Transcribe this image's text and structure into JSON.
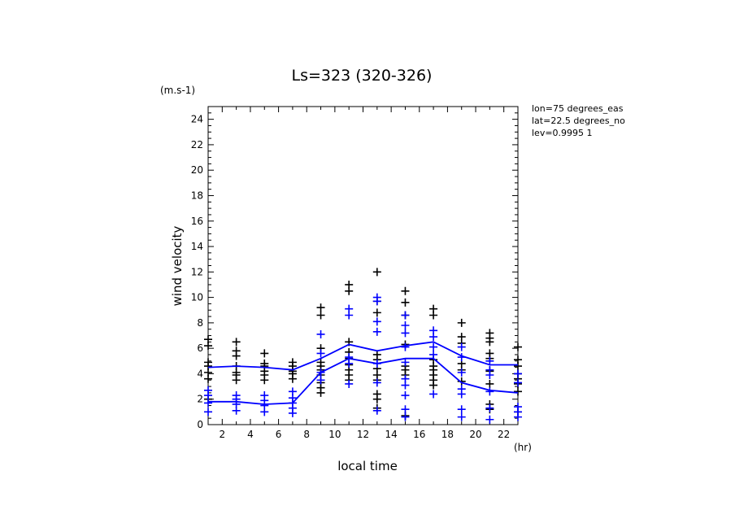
{
  "chart_data": {
    "type": "scatter",
    "title": "Ls=323 (320-326)",
    "xlabel": "local time",
    "ylabel": "wind velocity",
    "x_unit": "(hr)",
    "y_unit": "(m.s-1)",
    "xlim": [
      1,
      23
    ],
    "ylim": [
      0,
      25
    ],
    "x_ticks": [
      2,
      4,
      6,
      8,
      10,
      12,
      14,
      16,
      18,
      20,
      22
    ],
    "y_ticks": [
      0,
      2,
      4,
      6,
      8,
      10,
      12,
      14,
      16,
      18,
      20,
      22,
      24
    ],
    "grid": false,
    "annotations": [
      "lon=75 degrees_eas",
      "lat=22.5 degrees_no",
      "lev=0.9995 1"
    ],
    "series": [
      {
        "kind": "markers",
        "marker": "+",
        "color": "#000000",
        "points": [
          [
            1,
            6.7
          ],
          [
            1,
            6.2
          ],
          [
            1,
            4.9
          ],
          [
            1,
            4.6
          ],
          [
            1,
            4.1
          ],
          [
            1,
            3.6
          ],
          [
            1,
            2.0
          ],
          [
            3,
            6.5
          ],
          [
            3,
            5.8
          ],
          [
            3,
            5.4
          ],
          [
            3,
            4.6
          ],
          [
            3,
            4.1
          ],
          [
            3,
            3.9
          ],
          [
            3,
            3.5
          ],
          [
            5,
            5.6
          ],
          [
            5,
            4.8
          ],
          [
            5,
            4.6
          ],
          [
            5,
            4.2
          ],
          [
            5,
            3.9
          ],
          [
            5,
            3.5
          ],
          [
            7,
            4.9
          ],
          [
            7,
            4.6
          ],
          [
            7,
            4.2
          ],
          [
            7,
            4.0
          ],
          [
            7,
            3.6
          ],
          [
            9,
            9.2
          ],
          [
            9,
            8.6
          ],
          [
            9,
            6.0
          ],
          [
            9,
            4.9
          ],
          [
            9,
            4.6
          ],
          [
            9,
            4.3
          ],
          [
            9,
            3.9
          ],
          [
            9,
            3.3
          ],
          [
            9,
            2.9
          ],
          [
            9,
            2.5
          ],
          [
            11,
            11.0
          ],
          [
            11,
            10.5
          ],
          [
            11,
            6.5
          ],
          [
            11,
            5.7
          ],
          [
            11,
            5.2
          ],
          [
            11,
            4.7
          ],
          [
            11,
            4.3
          ],
          [
            11,
            3.9
          ],
          [
            11,
            3.5
          ],
          [
            13,
            12.0
          ],
          [
            13,
            9.7
          ],
          [
            13,
            8.8
          ],
          [
            13,
            5.5
          ],
          [
            13,
            5.1
          ],
          [
            13,
            4.4
          ],
          [
            13,
            3.9
          ],
          [
            13,
            3.5
          ],
          [
            13,
            2.4
          ],
          [
            13,
            2.0
          ],
          [
            13,
            1.3
          ],
          [
            15,
            10.5
          ],
          [
            15,
            9.6
          ],
          [
            15,
            8.6
          ],
          [
            15,
            6.3
          ],
          [
            15,
            4.6
          ],
          [
            15,
            4.3
          ],
          [
            15,
            3.9
          ],
          [
            15,
            0.7
          ],
          [
            17,
            9.1
          ],
          [
            17,
            8.6
          ],
          [
            17,
            5.1
          ],
          [
            17,
            4.6
          ],
          [
            17,
            4.3
          ],
          [
            17,
            3.9
          ],
          [
            17,
            3.5
          ],
          [
            17,
            3.1
          ],
          [
            19,
            8.0
          ],
          [
            19,
            6.9
          ],
          [
            19,
            6.4
          ],
          [
            19,
            4.8
          ],
          [
            19,
            4.3
          ],
          [
            19,
            3.4
          ],
          [
            21,
            7.2
          ],
          [
            21,
            6.8
          ],
          [
            21,
            6.5
          ],
          [
            21,
            5.6
          ],
          [
            21,
            5.2
          ],
          [
            21,
            4.2
          ],
          [
            21,
            3.2
          ],
          [
            21,
            1.6
          ],
          [
            21,
            1.2
          ],
          [
            23,
            6.1
          ],
          [
            23,
            5.1
          ],
          [
            23,
            4.6
          ],
          [
            23,
            4.0
          ],
          [
            23,
            3.6
          ],
          [
            23,
            3.2
          ],
          [
            23,
            2.6
          ],
          [
            23,
            1.0
          ]
        ]
      },
      {
        "kind": "markers",
        "marker": "+",
        "color": "#0000ff",
        "points": [
          [
            1,
            2.7
          ],
          [
            1,
            2.3
          ],
          [
            1,
            1.7
          ],
          [
            1,
            1.0
          ],
          [
            3,
            2.3
          ],
          [
            3,
            2.0
          ],
          [
            3,
            1.6
          ],
          [
            3,
            1.1
          ],
          [
            5,
            2.3
          ],
          [
            5,
            1.9
          ],
          [
            5,
            1.5
          ],
          [
            5,
            1.0
          ],
          [
            7,
            2.6
          ],
          [
            7,
            2.1
          ],
          [
            7,
            1.7
          ],
          [
            7,
            1.3
          ],
          [
            7,
            0.9
          ],
          [
            9,
            7.1
          ],
          [
            9,
            5.6
          ],
          [
            9,
            4.1
          ],
          [
            9,
            3.5
          ],
          [
            11,
            9.1
          ],
          [
            11,
            8.6
          ],
          [
            11,
            5.3
          ],
          [
            11,
            4.8
          ],
          [
            11,
            3.2
          ],
          [
            13,
            10.0
          ],
          [
            13,
            9.7
          ],
          [
            13,
            8.1
          ],
          [
            13,
            7.3
          ],
          [
            13,
            4.8
          ],
          [
            13,
            3.3
          ],
          [
            13,
            1.1
          ],
          [
            15,
            8.6
          ],
          [
            15,
            7.8
          ],
          [
            15,
            7.2
          ],
          [
            15,
            6.1
          ],
          [
            15,
            4.9
          ],
          [
            15,
            3.6
          ],
          [
            15,
            3.1
          ],
          [
            15,
            2.3
          ],
          [
            15,
            1.2
          ],
          [
            15,
            0.6
          ],
          [
            17,
            7.4
          ],
          [
            17,
            6.9
          ],
          [
            17,
            6.1
          ],
          [
            17,
            5.5
          ],
          [
            17,
            2.4
          ],
          [
            19,
            6.1
          ],
          [
            19,
            5.3
          ],
          [
            19,
            4.1
          ],
          [
            19,
            2.8
          ],
          [
            19,
            2.4
          ],
          [
            19,
            1.2
          ],
          [
            19,
            0.6
          ],
          [
            21,
            5.0
          ],
          [
            21,
            4.3
          ],
          [
            21,
            3.9
          ],
          [
            21,
            2.6
          ],
          [
            21,
            1.3
          ],
          [
            21,
            0.4
          ],
          [
            23,
            4.0
          ],
          [
            23,
            3.3
          ],
          [
            23,
            1.4
          ],
          [
            23,
            1.0
          ],
          [
            23,
            0.6
          ]
        ]
      },
      {
        "kind": "line",
        "color": "#0000ff",
        "points": [
          [
            1,
            4.5
          ],
          [
            3,
            4.6
          ],
          [
            5,
            4.5
          ],
          [
            7,
            4.3
          ],
          [
            9,
            5.2
          ],
          [
            11,
            6.3
          ],
          [
            13,
            5.8
          ],
          [
            15,
            6.2
          ],
          [
            17,
            6.5
          ],
          [
            19,
            5.4
          ],
          [
            21,
            4.7
          ],
          [
            23,
            4.7
          ]
        ]
      },
      {
        "kind": "line",
        "color": "#0000ff",
        "points": [
          [
            1,
            1.8
          ],
          [
            3,
            1.8
          ],
          [
            5,
            1.6
          ],
          [
            7,
            1.7
          ],
          [
            9,
            4.1
          ],
          [
            11,
            5.2
          ],
          [
            13,
            4.8
          ],
          [
            15,
            5.2
          ],
          [
            17,
            5.2
          ],
          [
            19,
            3.3
          ],
          [
            21,
            2.7
          ],
          [
            23,
            2.5
          ]
        ]
      }
    ]
  }
}
